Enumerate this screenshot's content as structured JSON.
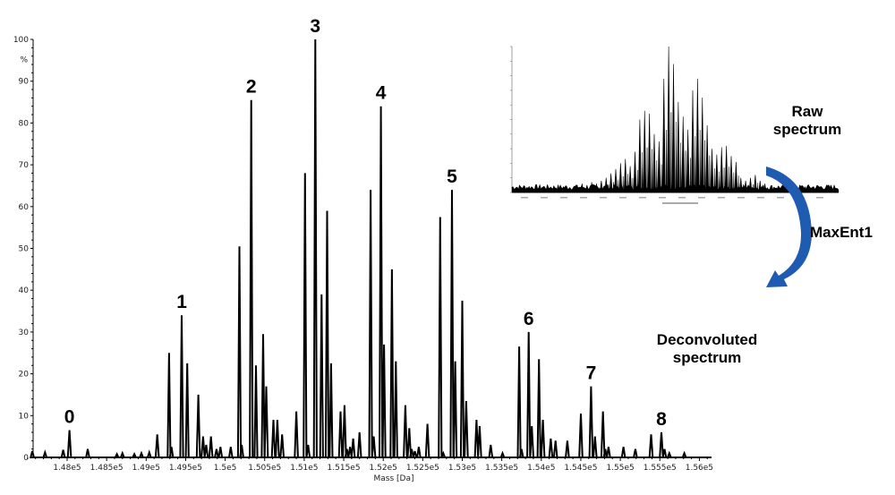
{
  "chart_data": {
    "type": "line",
    "title": "",
    "xlabel": "Mass [Da]",
    "ylabel": "%",
    "ylim": [
      0,
      100
    ],
    "xlim": [
      147400,
      156400
    ],
    "y_ticks": [
      "0",
      "10",
      "20",
      "30",
      "40",
      "50",
      "60",
      "70",
      "80",
      "90",
      "100"
    ],
    "x_ticks": [
      {
        "v": 148000,
        "label": "1.48e5"
      },
      {
        "v": 148500,
        "label": "1.485e5"
      },
      {
        "v": 149000,
        "label": "1.49e5"
      },
      {
        "v": 149500,
        "label": "1.495e5"
      },
      {
        "v": 150000,
        "label": "1.5e5"
      },
      {
        "v": 150500,
        "label": "1.505e5"
      },
      {
        "v": 151000,
        "label": "1.51e5"
      },
      {
        "v": 151500,
        "label": "1.515e5"
      },
      {
        "v": 152000,
        "label": "1.52e5"
      },
      {
        "v": 152500,
        "label": "1.525e5"
      },
      {
        "v": 153000,
        "label": "1.53e5"
      },
      {
        "v": 153500,
        "label": "1.535e5"
      },
      {
        "v": 154000,
        "label": "1.54e5"
      },
      {
        "v": 154500,
        "label": "1.545e5"
      },
      {
        "v": 155000,
        "label": "1.55e5"
      },
      {
        "v": 155500,
        "label": "1.555e5"
      },
      {
        "v": 156000,
        "label": "1.56e5"
      }
    ],
    "grid": false,
    "series": [
      {
        "name": "Deconvoluted spectrum",
        "peaks": [
          [
            147560,
            1.5
          ],
          [
            147720,
            1.2
          ],
          [
            147950,
            1.8
          ],
          [
            148030,
            6.5
          ],
          [
            148260,
            2
          ],
          [
            148630,
            0.8
          ],
          [
            148700,
            1.0
          ],
          [
            148850,
            0.8
          ],
          [
            148940,
            1
          ],
          [
            149040,
            1.2
          ],
          [
            149140,
            5.5
          ],
          [
            149290,
            25
          ],
          [
            149320,
            2.5
          ],
          [
            149450,
            34
          ],
          [
            149520,
            22.5
          ],
          [
            149660,
            15
          ],
          [
            149720,
            5
          ],
          [
            149760,
            3
          ],
          [
            149820,
            5
          ],
          [
            149890,
            2
          ],
          [
            149940,
            2.5
          ],
          [
            150070,
            2.5
          ],
          [
            150180,
            50.5
          ],
          [
            150210,
            3
          ],
          [
            150330,
            85.5
          ],
          [
            150390,
            22
          ],
          [
            150480,
            29.5
          ],
          [
            150520,
            17
          ],
          [
            150610,
            9
          ],
          [
            150660,
            9
          ],
          [
            150720,
            5.5
          ],
          [
            150900,
            11
          ],
          [
            151010,
            68
          ],
          [
            151050,
            3
          ],
          [
            151140,
            100
          ],
          [
            151220,
            39
          ],
          [
            151290,
            59
          ],
          [
            151340,
            22.5
          ],
          [
            151460,
            11
          ],
          [
            151510,
            12.5
          ],
          [
            151540,
            2
          ],
          [
            151580,
            2.5
          ],
          [
            151620,
            4.5
          ],
          [
            151700,
            6
          ],
          [
            151840,
            64
          ],
          [
            151880,
            5
          ],
          [
            151970,
            84
          ],
          [
            152010,
            27
          ],
          [
            152110,
            45
          ],
          [
            152160,
            23
          ],
          [
            152280,
            12.5
          ],
          [
            152330,
            7
          ],
          [
            152360,
            2
          ],
          [
            152400,
            1.5
          ],
          [
            152450,
            2.5
          ],
          [
            152560,
            8
          ],
          [
            152720,
            57.5
          ],
          [
            152760,
            1
          ],
          [
            152870,
            64
          ],
          [
            152910,
            23
          ],
          [
            153000,
            37.5
          ],
          [
            153050,
            13.5
          ],
          [
            153180,
            9
          ],
          [
            153220,
            7.5
          ],
          [
            153360,
            3
          ],
          [
            153510,
            1
          ],
          [
            153720,
            26.5
          ],
          [
            153750,
            2
          ],
          [
            153840,
            30
          ],
          [
            153880,
            7.5
          ],
          [
            153970,
            23.5
          ],
          [
            154020,
            9
          ],
          [
            154120,
            4.5
          ],
          [
            154180,
            4
          ],
          [
            154330,
            4
          ],
          [
            154500,
            10.5
          ],
          [
            154630,
            17
          ],
          [
            154680,
            5
          ],
          [
            154780,
            11
          ],
          [
            154810,
            2
          ],
          [
            154850,
            2.5
          ],
          [
            155040,
            2.5
          ],
          [
            155190,
            2
          ],
          [
            155390,
            5.5
          ],
          [
            155520,
            6
          ],
          [
            155560,
            2
          ],
          [
            155620,
            1
          ],
          [
            155810,
            1
          ]
        ]
      }
    ],
    "annotations": [
      {
        "label": "0",
        "x": 148030,
        "y": 6.5
      },
      {
        "label": "1",
        "x": 149450,
        "y": 34
      },
      {
        "label": "2",
        "x": 150330,
        "y": 85.5
      },
      {
        "label": "3",
        "x": 151140,
        "y": 100
      },
      {
        "label": "4",
        "x": 151970,
        "y": 84
      },
      {
        "label": "5",
        "x": 152870,
        "y": 64
      },
      {
        "label": "6",
        "x": 153840,
        "y": 30
      },
      {
        "label": "7",
        "x": 154630,
        "y": 17
      },
      {
        "label": "8",
        "x": 155520,
        "y": 6
      }
    ],
    "inset": {
      "description": "Raw spectrum (charge-state envelope)",
      "peaks_rel": [
        0.05,
        0.06,
        0.05,
        0.07,
        0.06,
        0.08,
        0.1,
        0.13,
        0.16,
        0.2,
        0.23,
        0.18,
        0.28,
        0.5,
        0.56,
        0.54,
        0.4,
        0.35,
        0.78,
        1.0,
        0.88,
        0.62,
        0.52,
        0.43,
        0.7,
        0.78,
        0.65,
        0.46,
        0.3,
        0.26,
        0.31,
        0.32,
        0.25,
        0.21,
        0.1,
        0.08,
        0.1,
        0.12,
        0.08,
        0.06
      ]
    }
  },
  "labels": {
    "raw_spectrum": [
      "Raw",
      "spectrum"
    ],
    "method": "MaxEnt1",
    "deconvoluted": [
      "Deconvoluted",
      "spectrum"
    ]
  },
  "colors": {
    "arrow": "#1f5bb0",
    "line": "#000000"
  }
}
